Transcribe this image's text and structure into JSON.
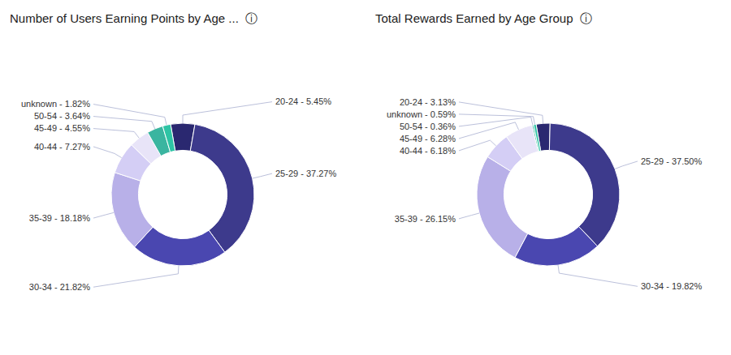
{
  "chart_data": [
    {
      "type": "donut",
      "title": "Number of Users Earning Points by Age ...  ⓘ",
      "categories": [
        "20-24",
        "25-29",
        "30-34",
        "35-39",
        "40-44",
        "45-49",
        "50-54",
        "unknown"
      ],
      "values": [
        5.45,
        37.27,
        21.82,
        18.18,
        7.27,
        4.55,
        3.64,
        1.82
      ],
      "value_labels": [
        "5.45%",
        "37.27%",
        "21.82%",
        "18.18%",
        "7.27%",
        "4.55%",
        "3.64%",
        "1.82%"
      ],
      "colors": [
        "#2a2870",
        "#3d3a8c",
        "#4a47b0",
        "#b8b0e8",
        "#d4cef5",
        "#e8e4f8",
        "#3ab5a0",
        "#2ec4a5"
      ],
      "data_labels": true
    },
    {
      "type": "donut",
      "title": "Total Rewards Earned by Age Group  ⓘ",
      "categories": [
        "20-24",
        "25-29",
        "30-34",
        "35-39",
        "40-44",
        "45-49",
        "50-54",
        "unknown"
      ],
      "values": [
        3.13,
        37.5,
        19.82,
        26.15,
        6.18,
        6.28,
        0.36,
        0.59
      ],
      "value_labels": [
        "3.13%",
        "37.50%",
        "19.82%",
        "26.15%",
        "6.18%",
        "6.28%",
        "0.36%",
        "0.59%"
      ],
      "colors": [
        "#2a2870",
        "#3d3a8c",
        "#4a47b0",
        "#b8b0e8",
        "#d4cef5",
        "#e8e4f8",
        "#3ab5a0",
        "#2ec4a5"
      ],
      "data_labels": true
    }
  ]
}
